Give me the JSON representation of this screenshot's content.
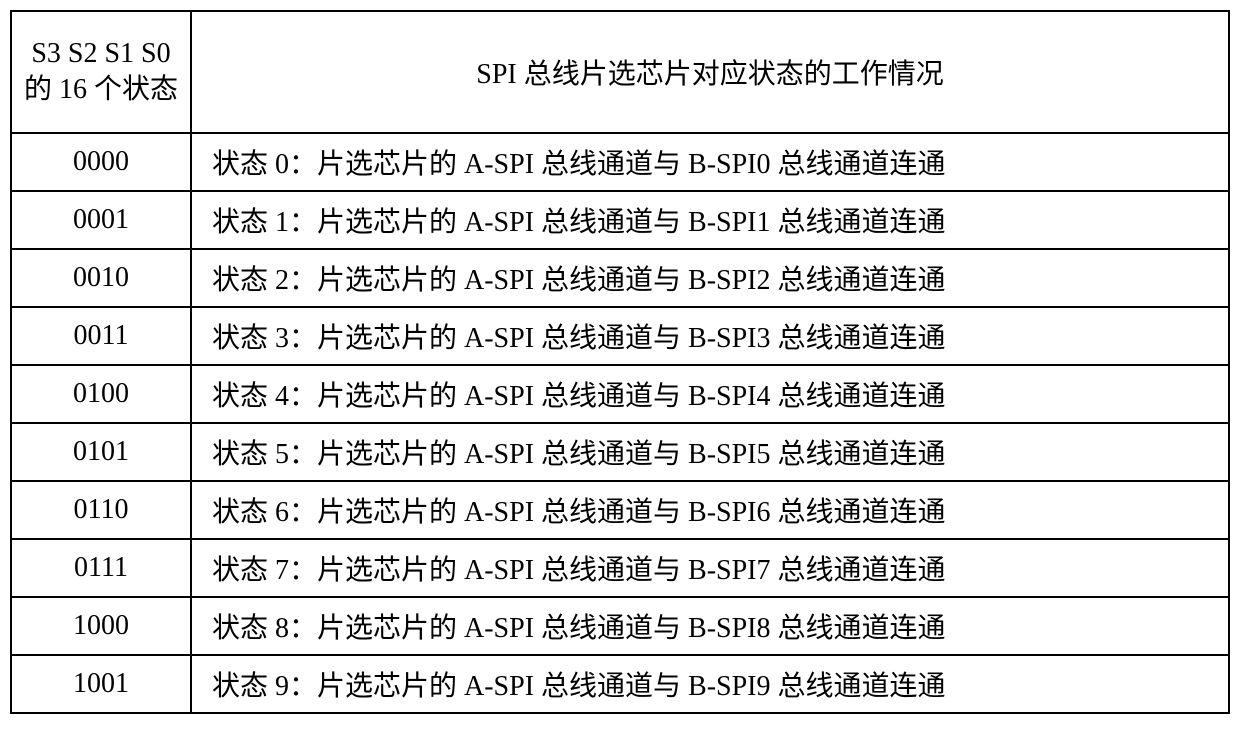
{
  "table": {
    "header": {
      "state_col": "S3 S2 S1 S0\n的 16 个状态",
      "desc_col": "SPI 总线片选芯片对应状态的工作情况"
    },
    "rows": [
      {
        "state": "0000",
        "desc": "状态 0：片选芯片的 A-SPI 总线通道与 B-SPI0 总线通道连通"
      },
      {
        "state": "0001",
        "desc": "状态 1：片选芯片的 A-SPI 总线通道与 B-SPI1 总线通道连通"
      },
      {
        "state": "0010",
        "desc": "状态 2：片选芯片的 A-SPI 总线通道与 B-SPI2 总线通道连通"
      },
      {
        "state": "0011",
        "desc": "状态 3：片选芯片的 A-SPI 总线通道与 B-SPI3 总线通道连通"
      },
      {
        "state": "0100",
        "desc": "状态 4：片选芯片的 A-SPI 总线通道与 B-SPI4 总线通道连通"
      },
      {
        "state": "0101",
        "desc": "状态 5：片选芯片的 A-SPI 总线通道与 B-SPI5 总线通道连通"
      },
      {
        "state": "0110",
        "desc": "状态 6：片选芯片的 A-SPI 总线通道与 B-SPI6 总线通道连通"
      },
      {
        "state": "0111",
        "desc": "状态 7：片选芯片的 A-SPI 总线通道与 B-SPI7 总线通道连通"
      },
      {
        "state": "1000",
        "desc": "状态 8：片选芯片的 A-SPI 总线通道与 B-SPI8 总线通道连通"
      },
      {
        "state": "1001",
        "desc": "状态 9：片选芯片的 A-SPI 总线通道与 B-SPI9 总线通道连通"
      }
    ],
    "styling": {
      "border_color": "#000000",
      "border_width": 2,
      "background_color": "#ffffff",
      "text_color": "#000000",
      "font_size": 28,
      "font_family": "SimSun",
      "col_state_width": 180,
      "col_desc_align": "left",
      "col_state_align": "center"
    }
  }
}
